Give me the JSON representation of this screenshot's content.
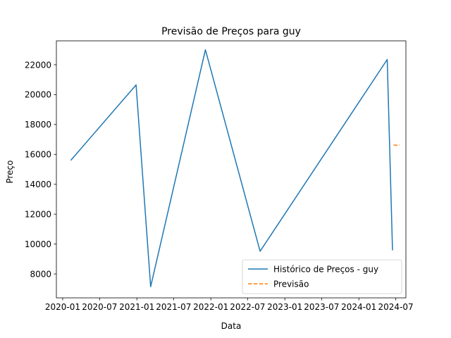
{
  "chart_data": {
    "type": "line",
    "title": "Previsão de Preços para guy",
    "xlabel": "Data",
    "ylabel": "Preço",
    "x_type": "date",
    "xlim": [
      "2019-12-01",
      "2024-08-20"
    ],
    "ylim": [
      6400,
      23600
    ],
    "x_ticks": [
      {
        "value": "2020-01-01",
        "label": "2020-01"
      },
      {
        "value": "2020-07-01",
        "label": "2020-07"
      },
      {
        "value": "2021-01-01",
        "label": "2021-01"
      },
      {
        "value": "2021-07-01",
        "label": "2021-07"
      },
      {
        "value": "2022-01-01",
        "label": "2022-01"
      },
      {
        "value": "2022-07-01",
        "label": "2022-07"
      },
      {
        "value": "2023-01-01",
        "label": "2023-01"
      },
      {
        "value": "2023-07-01",
        "label": "2023-07"
      },
      {
        "value": "2024-01-01",
        "label": "2024-01"
      },
      {
        "value": "2024-07-01",
        "label": "2024-07"
      }
    ],
    "y_ticks": [
      8000,
      10000,
      12000,
      14000,
      16000,
      18000,
      20000,
      22000
    ],
    "grid": false,
    "legend_position": "lower right",
    "series": [
      {
        "name": "Histórico de Preços - guy",
        "color": "#1f77b4",
        "style": "solid",
        "points": [
          {
            "x": "2020-02-10",
            "y": 15600
          },
          {
            "x": "2020-12-28",
            "y": 20650
          },
          {
            "x": "2021-03-10",
            "y": 7150
          },
          {
            "x": "2021-12-05",
            "y": 23000
          },
          {
            "x": "2022-09-01",
            "y": 9520
          },
          {
            "x": "2024-05-20",
            "y": 22350
          },
          {
            "x": "2024-06-15",
            "y": 9580
          }
        ]
      },
      {
        "name": "Previsão",
        "color": "#ff7f0e",
        "style": "dashed",
        "points": [
          {
            "x": "2024-06-20",
            "y": 16620
          },
          {
            "x": "2024-07-20",
            "y": 16620
          }
        ]
      }
    ]
  }
}
